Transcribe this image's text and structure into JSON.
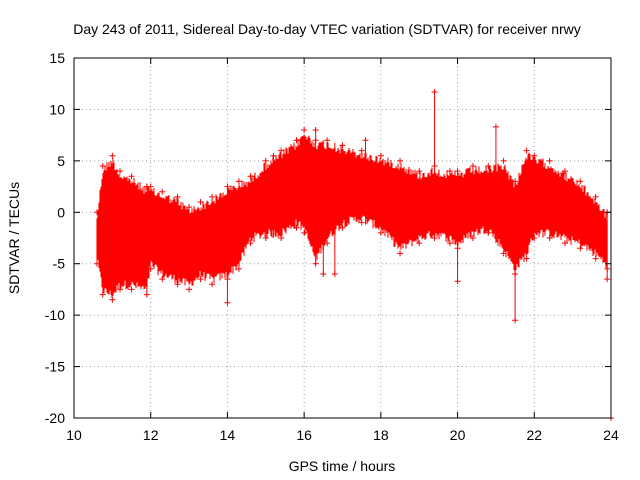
{
  "chart_data": {
    "type": "scatter",
    "title": "Day 243 of 2011, Sidereal Day-to-day VTEC variation (SDTVAR) for receiver nrwy",
    "xlabel": "GPS time / hours",
    "ylabel": "SDTVAR / TECUs",
    "xlim": [
      10,
      24
    ],
    "ylim": [
      -20,
      15
    ],
    "xticks": [
      10,
      12,
      14,
      16,
      18,
      20,
      22,
      24
    ],
    "yticks": [
      -20,
      -15,
      -10,
      -5,
      0,
      5,
      10,
      15
    ],
    "grid": true,
    "marker": "+",
    "series_color": "#ff0000",
    "series": [
      {
        "name": "SDTVAR",
        "envelope": {
          "x": [
            10.6,
            10.75,
            11.0,
            11.2,
            11.5,
            11.9,
            12.0,
            12.3,
            12.7,
            13.0,
            13.3,
            13.6,
            14.0,
            14.3,
            14.6,
            15.0,
            15.4,
            15.8,
            16.0,
            16.3,
            16.6,
            17.0,
            17.5,
            18.0,
            18.5,
            19.0,
            19.4,
            19.8,
            20.0,
            20.4,
            20.8,
            21.2,
            21.5,
            21.8,
            22.0,
            22.4,
            22.8,
            23.2,
            23.6,
            23.9
          ],
          "upper": [
            0.0,
            4.5,
            5.5,
            4.0,
            3.5,
            2.5,
            2.5,
            2.0,
            1.5,
            0.5,
            1.0,
            1.5,
            2.5,
            3.0,
            3.5,
            5.0,
            6.0,
            7.0,
            8.0,
            7.0,
            7.0,
            6.5,
            6.0,
            5.5,
            5.0,
            4.0,
            4.5,
            4.0,
            4.0,
            4.5,
            4.5,
            5.0,
            3.0,
            6.0,
            5.5,
            5.0,
            4.0,
            3.0,
            1.5,
            0.0
          ],
          "lower": [
            -5.0,
            -8.0,
            -8.5,
            -7.5,
            -7.5,
            -8.0,
            -5.5,
            -6.5,
            -7.0,
            -7.5,
            -6.5,
            -7.0,
            -6.5,
            -5.5,
            -3.0,
            -2.5,
            -2.5,
            -1.5,
            -2.0,
            -5.0,
            -3.0,
            -1.5,
            -1.0,
            -2.0,
            -4.0,
            -3.0,
            -2.5,
            -3.0,
            -3.5,
            -2.5,
            -2.0,
            -4.0,
            -6.0,
            -4.5,
            -2.5,
            -2.5,
            -3.0,
            -3.5,
            -4.5,
            -5.5
          ]
        },
        "outliers": [
          {
            "x": 19.4,
            "y": 11.7
          },
          {
            "x": 21.0,
            "y": 8.3
          },
          {
            "x": 16.3,
            "y": 8.0
          },
          {
            "x": 17.6,
            "y": 7.0
          },
          {
            "x": 14.0,
            "y": -8.8
          },
          {
            "x": 16.5,
            "y": -6.0
          },
          {
            "x": 16.8,
            "y": -6.0
          },
          {
            "x": 20.0,
            "y": -6.7
          },
          {
            "x": 21.5,
            "y": -10.5
          },
          {
            "x": 23.9,
            "y": -6.5
          },
          {
            "x": 24.0,
            "y": -20.0
          },
          {
            "x": 11.9,
            "y": 2.5
          },
          {
            "x": 15.2,
            "y": 5.5
          }
        ]
      }
    ]
  }
}
